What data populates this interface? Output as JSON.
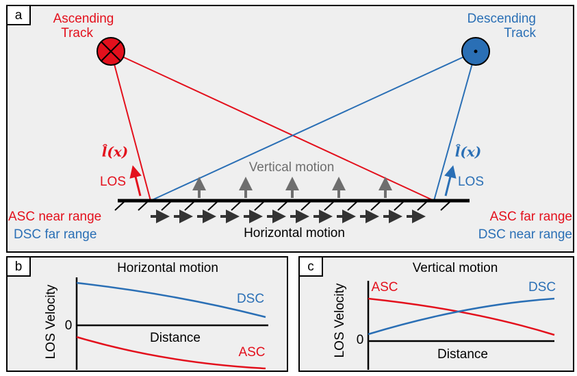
{
  "panels": [
    {
      "label": "a",
      "ascending": [
        "Ascending",
        "Track"
      ],
      "descending": [
        "Descending",
        "Track"
      ],
      "los_symbol": "l̂(x)",
      "los": "LOS",
      "vertical": "Vertical motion",
      "horizontal": "Horizontal motion",
      "asc_near": "ASC near range",
      "dsc_far": "DSC far range",
      "asc_far": "ASC far range",
      "dsc_near": "DSC near range"
    },
    {
      "label": "b",
      "title": "Horizontal motion",
      "y_label": "LOS Velocity",
      "x_label": "Distance",
      "zero": "0",
      "dsc": "DSC",
      "asc": "ASC"
    },
    {
      "label": "c",
      "title": "Vertical motion",
      "y_label": "LOS Velocity",
      "x_label": "Distance",
      "zero": "0",
      "dsc": "DSC",
      "asc": "ASC"
    }
  ]
}
